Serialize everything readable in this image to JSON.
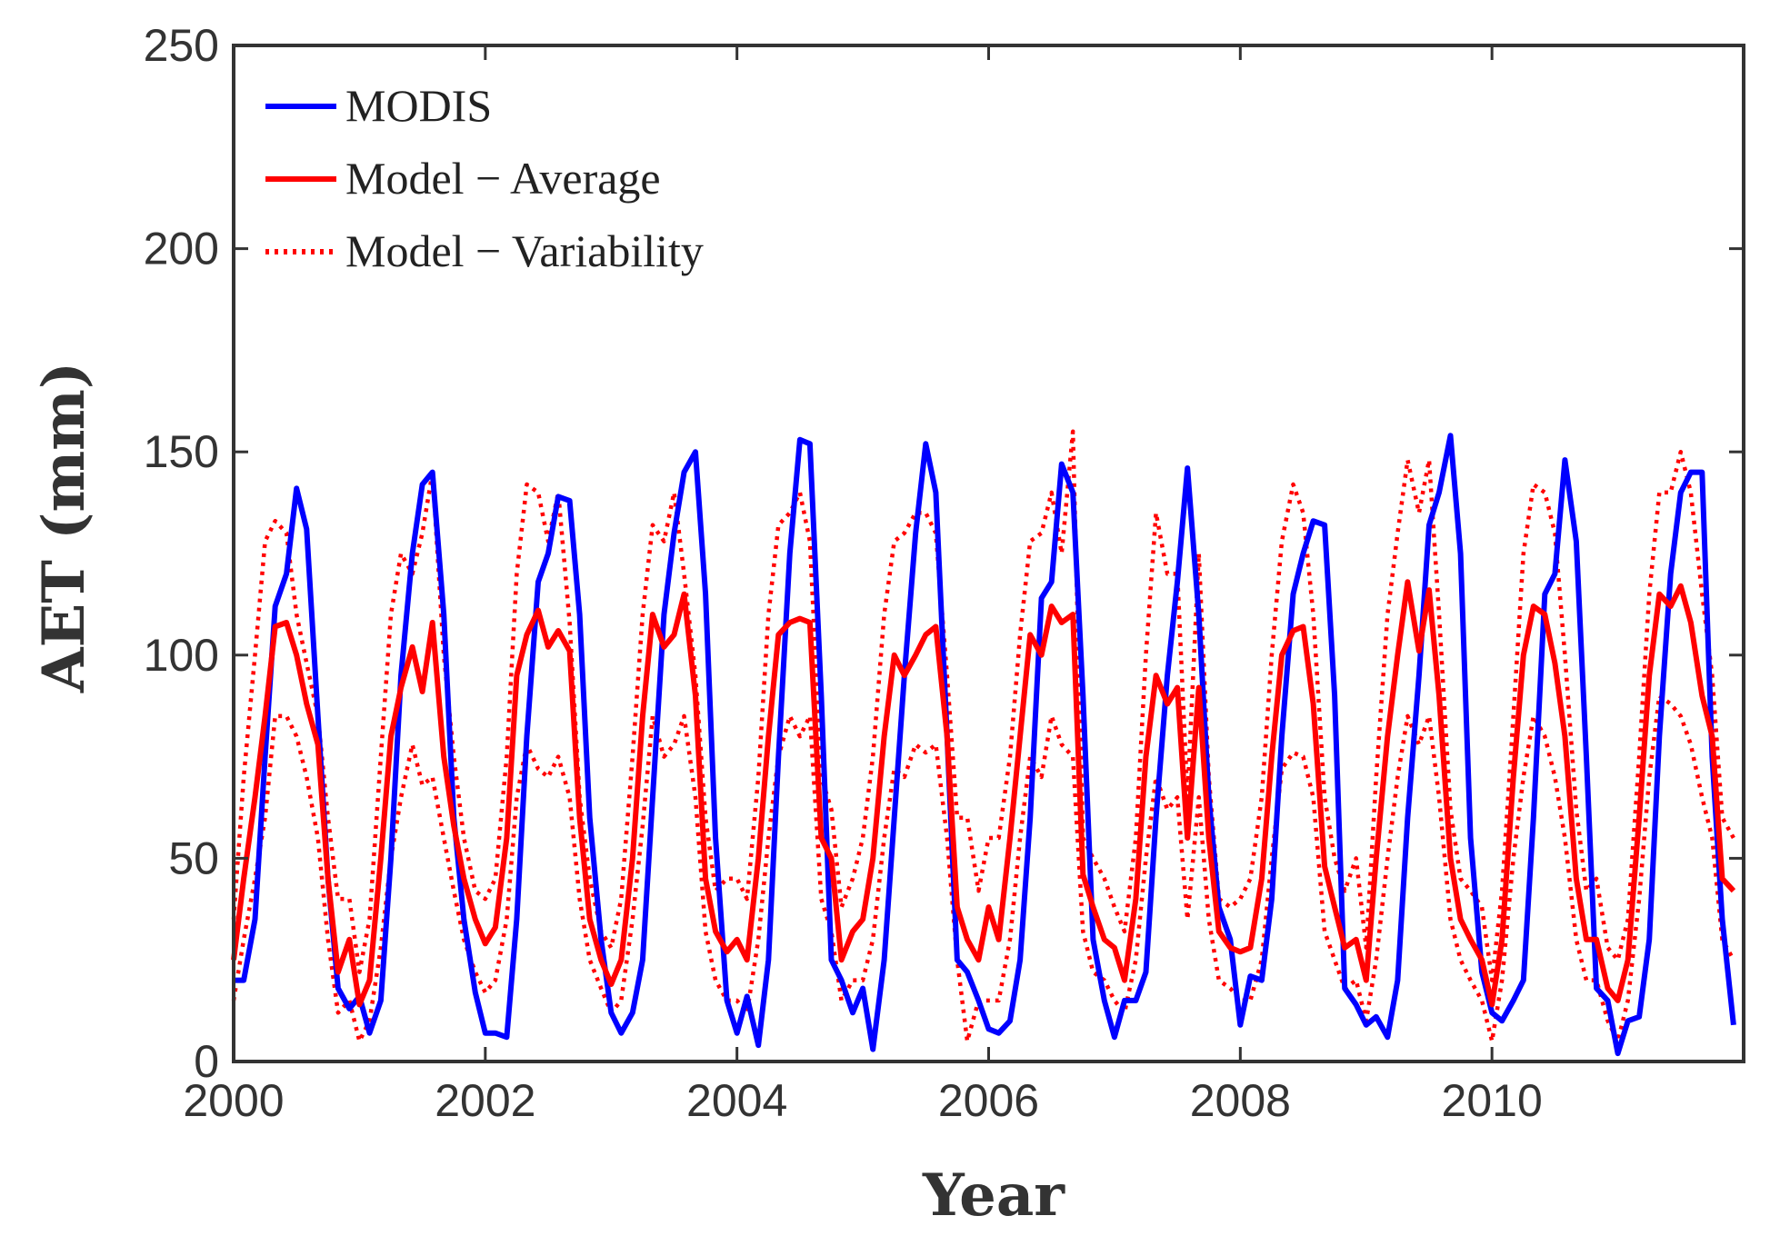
{
  "chart_data": {
    "type": "line",
    "xlabel": "Year",
    "ylabel": "AET (mm)",
    "xlim": [
      2000,
      2012
    ],
    "ylim": [
      0,
      250
    ],
    "xticks": [
      2000,
      2002,
      2004,
      2006,
      2008,
      2010
    ],
    "yticks": [
      0,
      50,
      100,
      150,
      200,
      250
    ],
    "grid": false,
    "legend_position": "top-left",
    "series": [
      {
        "name": "MODIS",
        "color": "#0000ff",
        "style": "solid",
        "x": [
          2000.0,
          2000.08,
          2000.17,
          2000.25,
          2000.33,
          2000.42,
          2000.5,
          2000.58,
          2000.67,
          2000.75,
          2000.83,
          2000.92,
          2001.0,
          2001.08,
          2001.17,
          2001.25,
          2001.33,
          2001.42,
          2001.5,
          2001.58,
          2001.67,
          2001.75,
          2001.83,
          2001.92,
          2002.0,
          2002.08,
          2002.17,
          2002.25,
          2002.33,
          2002.42,
          2002.5,
          2002.58,
          2002.67,
          2002.75,
          2002.83,
          2002.92,
          2003.0,
          2003.08,
          2003.17,
          2003.25,
          2003.33,
          2003.42,
          2003.5,
          2003.58,
          2003.67,
          2003.75,
          2003.83,
          2003.92,
          2004.0,
          2004.08,
          2004.17,
          2004.25,
          2004.33,
          2004.42,
          2004.5,
          2004.58,
          2004.67,
          2004.75,
          2004.83,
          2004.92,
          2005.0,
          2005.08,
          2005.17,
          2005.25,
          2005.33,
          2005.42,
          2005.5,
          2005.58,
          2005.67,
          2005.75,
          2005.83,
          2005.92,
          2006.0,
          2006.08,
          2006.17,
          2006.25,
          2006.33,
          2006.42,
          2006.5,
          2006.58,
          2006.67,
          2006.75,
          2006.83,
          2006.92,
          2007.0,
          2007.08,
          2007.17,
          2007.25,
          2007.33,
          2007.42,
          2007.5,
          2007.58,
          2007.67,
          2007.75,
          2007.83,
          2007.92,
          2008.0,
          2008.08,
          2008.17,
          2008.25,
          2008.33,
          2008.42,
          2008.5,
          2008.58,
          2008.67,
          2008.75,
          2008.83,
          2008.92,
          2009.0,
          2009.08,
          2009.17,
          2009.25,
          2009.33,
          2009.42,
          2009.5,
          2009.58,
          2009.67,
          2009.75,
          2009.83,
          2009.92,
          2010.0,
          2010.08,
          2010.17,
          2010.25,
          2010.33,
          2010.42,
          2010.5,
          2010.58,
          2010.67,
          2010.75,
          2010.83,
          2010.92,
          2011.0,
          2011.08,
          2011.17,
          2011.25,
          2011.33,
          2011.42,
          2011.5,
          2011.58,
          2011.67,
          2011.75,
          2011.83,
          2011.92
        ],
        "y": [
          20,
          20,
          35,
          75,
          112,
          120,
          141,
          131,
          85,
          45,
          18,
          13,
          16,
          7,
          15,
          50,
          95,
          125,
          142,
          145,
          110,
          60,
          35,
          17,
          7,
          7,
          6,
          35,
          80,
          118,
          125,
          139,
          138,
          110,
          60,
          30,
          12,
          7,
          12,
          25,
          65,
          110,
          130,
          145,
          150,
          115,
          55,
          15,
          7,
          16,
          4,
          25,
          75,
          125,
          153,
          152,
          90,
          25,
          20,
          12,
          18,
          3,
          25,
          60,
          95,
          130,
          152,
          140,
          80,
          25,
          22,
          15,
          8,
          7,
          10,
          25,
          60,
          114,
          118,
          147,
          140,
          90,
          30,
          15,
          6,
          15,
          15,
          22,
          60,
          95,
          118,
          146,
          110,
          65,
          38,
          30,
          9,
          21,
          20,
          40,
          80,
          115,
          125,
          133,
          132,
          90,
          18,
          14,
          9,
          11,
          6,
          20,
          60,
          95,
          132,
          140,
          154,
          125,
          55,
          22,
          12,
          10,
          15,
          20,
          60,
          115,
          120,
          148,
          128,
          75,
          18,
          15,
          2,
          10,
          11,
          30,
          80,
          120,
          140,
          145,
          145,
          75,
          35,
          9
        ]
      },
      {
        "name": "Model − Average",
        "color": "#ff0000",
        "style": "solid",
        "x": [
          2000.0,
          2000.08,
          2000.17,
          2000.25,
          2000.33,
          2000.42,
          2000.5,
          2000.58,
          2000.67,
          2000.75,
          2000.83,
          2000.92,
          2001.0,
          2001.08,
          2001.17,
          2001.25,
          2001.33,
          2001.42,
          2001.5,
          2001.58,
          2001.67,
          2001.75,
          2001.83,
          2001.92,
          2002.0,
          2002.08,
          2002.17,
          2002.25,
          2002.33,
          2002.42,
          2002.5,
          2002.58,
          2002.67,
          2002.75,
          2002.83,
          2002.92,
          2003.0,
          2003.08,
          2003.17,
          2003.25,
          2003.33,
          2003.42,
          2003.5,
          2003.58,
          2003.67,
          2003.75,
          2003.83,
          2003.92,
          2004.0,
          2004.08,
          2004.17,
          2004.25,
          2004.33,
          2004.42,
          2004.5,
          2004.58,
          2004.67,
          2004.75,
          2004.83,
          2004.92,
          2005.0,
          2005.08,
          2005.17,
          2005.25,
          2005.33,
          2005.42,
          2005.5,
          2005.58,
          2005.67,
          2005.75,
          2005.83,
          2005.92,
          2006.0,
          2006.08,
          2006.17,
          2006.25,
          2006.33,
          2006.42,
          2006.5,
          2006.58,
          2006.67,
          2006.75,
          2006.83,
          2006.92,
          2007.0,
          2007.08,
          2007.17,
          2007.25,
          2007.33,
          2007.42,
          2007.5,
          2007.58,
          2007.67,
          2007.75,
          2007.83,
          2007.92,
          2008.0,
          2008.08,
          2008.17,
          2008.25,
          2008.33,
          2008.42,
          2008.5,
          2008.58,
          2008.67,
          2008.75,
          2008.83,
          2008.92,
          2009.0,
          2009.08,
          2009.17,
          2009.25,
          2009.33,
          2009.42,
          2009.5,
          2009.58,
          2009.67,
          2009.75,
          2009.83,
          2009.92,
          2010.0,
          2010.08,
          2010.17,
          2010.25,
          2010.33,
          2010.42,
          2010.5,
          2010.58,
          2010.67,
          2010.75,
          2010.83,
          2010.92,
          2011.0,
          2011.08,
          2011.17,
          2011.25,
          2011.33,
          2011.42,
          2011.5,
          2011.58,
          2011.67,
          2011.75,
          2011.83,
          2011.92
        ],
        "y": [
          25,
          45,
          65,
          85,
          107,
          108,
          100,
          88,
          78,
          45,
          22,
          30,
          14,
          20,
          50,
          80,
          92,
          102,
          91,
          108,
          75,
          58,
          45,
          35,
          29,
          33,
          55,
          95,
          105,
          111,
          102,
          106,
          101,
          60,
          35,
          25,
          19,
          25,
          50,
          85,
          110,
          102,
          105,
          115,
          90,
          45,
          32,
          27,
          30,
          25,
          50,
          80,
          105,
          108,
          109,
          108,
          55,
          50,
          25,
          32,
          35,
          50,
          80,
          100,
          95,
          100,
          105,
          107,
          80,
          38,
          30,
          25,
          38,
          30,
          55,
          80,
          105,
          100,
          112,
          108,
          110,
          46,
          38,
          30,
          28,
          20,
          40,
          75,
          95,
          88,
          92,
          55,
          92,
          55,
          32,
          28,
          27,
          28,
          45,
          75,
          100,
          106,
          107,
          88,
          48,
          38,
          28,
          30,
          20,
          50,
          80,
          100,
          118,
          101,
          116,
          90,
          50,
          35,
          30,
          25,
          14,
          30,
          70,
          100,
          112,
          110,
          98,
          80,
          45,
          30,
          30,
          18,
          15,
          25,
          60,
          95,
          115,
          112,
          117,
          108,
          90,
          80,
          45,
          42
        ]
      },
      {
        "name": "Model − Variability",
        "color": "#ff0000",
        "style": "dotted",
        "x": [
          2000.0,
          2000.08,
          2000.17,
          2000.25,
          2000.33,
          2000.42,
          2000.5,
          2000.58,
          2000.67,
          2000.75,
          2000.83,
          2000.92,
          2001.0,
          2001.08,
          2001.17,
          2001.25,
          2001.33,
          2001.42,
          2001.5,
          2001.58,
          2001.67,
          2001.75,
          2001.83,
          2001.92,
          2002.0,
          2002.08,
          2002.17,
          2002.25,
          2002.33,
          2002.42,
          2002.5,
          2002.58,
          2002.67,
          2002.75,
          2002.83,
          2002.92,
          2003.0,
          2003.08,
          2003.17,
          2003.25,
          2003.33,
          2003.42,
          2003.5,
          2003.58,
          2003.67,
          2003.75,
          2003.83,
          2003.92,
          2004.0,
          2004.08,
          2004.17,
          2004.25,
          2004.33,
          2004.42,
          2004.5,
          2004.58,
          2004.67,
          2004.75,
          2004.83,
          2004.92,
          2005.0,
          2005.08,
          2005.17,
          2005.25,
          2005.33,
          2005.42,
          2005.5,
          2005.58,
          2005.67,
          2005.75,
          2005.83,
          2005.92,
          2006.0,
          2006.08,
          2006.17,
          2006.25,
          2006.33,
          2006.42,
          2006.5,
          2006.58,
          2006.67,
          2006.75,
          2006.83,
          2006.92,
          2007.0,
          2007.08,
          2007.17,
          2007.25,
          2007.33,
          2007.42,
          2007.5,
          2007.58,
          2007.67,
          2007.75,
          2007.83,
          2007.92,
          2008.0,
          2008.08,
          2008.17,
          2008.25,
          2008.33,
          2008.42,
          2008.5,
          2008.58,
          2008.67,
          2008.75,
          2008.83,
          2008.92,
          2009.0,
          2009.08,
          2009.17,
          2009.25,
          2009.33,
          2009.42,
          2009.5,
          2009.58,
          2009.67,
          2009.75,
          2009.83,
          2009.92,
          2010.0,
          2010.08,
          2010.17,
          2010.25,
          2010.33,
          2010.42,
          2010.5,
          2010.58,
          2010.67,
          2010.75,
          2010.83,
          2010.92,
          2011.0,
          2011.08,
          2011.17,
          2011.25,
          2011.33,
          2011.42,
          2011.5,
          2011.58,
          2011.67,
          2011.75,
          2011.83,
          2011.92
        ],
        "y_upper": [
          35,
          70,
          100,
          128,
          133,
          130,
          110,
          98,
          85,
          60,
          40,
          40,
          22,
          35,
          75,
          110,
          125,
          120,
          130,
          145,
          100,
          75,
          55,
          42,
          40,
          45,
          75,
          120,
          142,
          140,
          128,
          140,
          108,
          65,
          45,
          32,
          28,
          40,
          75,
          110,
          132,
          128,
          140,
          120,
          95,
          60,
          42,
          45,
          45,
          40,
          70,
          110,
          132,
          135,
          140,
          128,
          70,
          62,
          38,
          45,
          55,
          75,
          110,
          128,
          130,
          135,
          135,
          130,
          95,
          60,
          60,
          42,
          55,
          55,
          75,
          105,
          128,
          130,
          140,
          125,
          155,
          55,
          50,
          45,
          38,
          32,
          55,
          100,
          135,
          120,
          120,
          65,
          125,
          70,
          40,
          38,
          40,
          45,
          65,
          100,
          128,
          142,
          135,
          110,
          65,
          50,
          42,
          50,
          28,
          70,
          110,
          130,
          148,
          135,
          148,
          110,
          62,
          45,
          42,
          38,
          20,
          42,
          85,
          125,
          142,
          140,
          130,
          100,
          62,
          42,
          45,
          28,
          25,
          35,
          75,
          115,
          140,
          140,
          150,
          140,
          115,
          95,
          60,
          55
        ],
        "y_lower": [
          15,
          30,
          45,
          60,
          85,
          85,
          80,
          70,
          55,
          30,
          12,
          15,
          5,
          10,
          28,
          50,
          65,
          78,
          68,
          70,
          55,
          42,
          30,
          22,
          17,
          20,
          35,
          65,
          78,
          72,
          70,
          75,
          65,
          40,
          25,
          18,
          12,
          15,
          35,
          58,
          85,
          75,
          78,
          85,
          65,
          32,
          20,
          15,
          15,
          12,
          30,
          55,
          75,
          85,
          80,
          85,
          40,
          32,
          15,
          20,
          20,
          30,
          55,
          72,
          70,
          78,
          76,
          78,
          55,
          25,
          5,
          15,
          15,
          15,
          30,
          55,
          75,
          70,
          85,
          78,
          75,
          32,
          22,
          20,
          15,
          12,
          25,
          50,
          70,
          62,
          65,
          35,
          65,
          35,
          20,
          18,
          15,
          15,
          25,
          50,
          72,
          76,
          75,
          65,
          32,
          25,
          18,
          20,
          10,
          25,
          50,
          70,
          85,
          78,
          85,
          65,
          35,
          25,
          20,
          15,
          5,
          20,
          50,
          70,
          85,
          80,
          70,
          55,
          30,
          20,
          20,
          10,
          5,
          15,
          40,
          70,
          90,
          88,
          85,
          78,
          65,
          55,
          30,
          25
        ]
      }
    ]
  }
}
